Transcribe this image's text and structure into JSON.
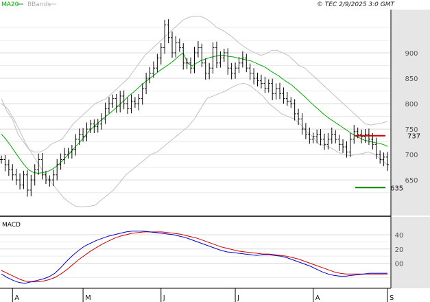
{
  "header": {
    "legend_ma": "MA20",
    "legend_bb": "BBands",
    "copyright": "© TEC 2/9/2025 3:0 GMT"
  },
  "colors": {
    "ma": "#00aa00",
    "bbands": "#c0c0c0",
    "bars": "#000000",
    "resistance": "#cc0000",
    "support": "#008800",
    "macd": "#0000cc",
    "signal": "#cc0000",
    "grid": "#d8d8d8",
    "axis_bg": "#e6e6e6"
  },
  "chart_data": [
    {
      "type": "ohlc",
      "panel": "price",
      "ylim": [
        580,
        985
      ],
      "y_ticks": [
        650,
        700,
        750,
        800,
        850,
        900
      ],
      "y_tick_labels": [
        "650",
        "700",
        "750",
        "800",
        "850",
        "900"
      ],
      "x_labels": [
        "A",
        "M",
        "J",
        "J",
        "A",
        "S"
      ],
      "x_label_index": [
        3,
        22,
        43,
        63,
        84,
        104
      ],
      "n_bars": 105,
      "closes": [
        690,
        680,
        670,
        660,
        650,
        640,
        660,
        630,
        650,
        670,
        690,
        660,
        650,
        650,
        660,
        680,
        690,
        700,
        705,
        710,
        730,
        740,
        735,
        750,
        760,
        755,
        760,
        770,
        790,
        800,
        810,
        795,
        815,
        800,
        790,
        805,
        800,
        810,
        830,
        850,
        860,
        870,
        890,
        910,
        955,
        930,
        900,
        920,
        910,
        880,
        880,
        870,
        900,
        910,
        880,
        860,
        870,
        910,
        880,
        890,
        900,
        870,
        860,
        870,
        880,
        890,
        870,
        860,
        850,
        845,
        840,
        830,
        840,
        820,
        830,
        820,
        810,
        805,
        800,
        780,
        770,
        750,
        740,
        730,
        735,
        740,
        730,
        720,
        730,
        740,
        730,
        720,
        715,
        705,
        730,
        745,
        740,
        735,
        740,
        730,
        720,
        700,
        690,
        695,
        680
      ],
      "ma20": [
        740,
        730,
        718,
        705,
        692,
        680,
        670,
        665,
        663,
        664,
        666,
        670,
        676,
        684,
        693,
        702,
        712,
        722,
        732,
        743,
        752,
        760,
        768,
        775,
        782,
        790,
        798,
        806,
        815,
        822,
        830,
        838,
        845,
        852,
        859,
        866,
        872,
        878,
        885,
        893,
        900,
        880,
        874,
        880,
        885,
        888,
        891,
        893,
        895,
        895,
        893,
        892,
        890,
        888,
        886,
        884,
        880,
        876,
        872,
        866,
        860,
        855,
        848,
        842,
        836,
        828,
        820,
        812,
        803,
        795,
        787,
        779,
        772,
        766,
        760,
        754,
        748,
        742,
        736,
        732,
        728,
        726,
        724,
        722,
        720,
        716
      ],
      "ma20_start": 0,
      "bb_upper": [
        810,
        785,
        770,
        740,
        725,
        710,
        705,
        705,
        710,
        720,
        725,
        730,
        745,
        760,
        770,
        780,
        790,
        800,
        805,
        810,
        820,
        830,
        840,
        850,
        865,
        880,
        895,
        905,
        915,
        925,
        935,
        945,
        955,
        965,
        970,
        972,
        972,
        968,
        960,
        950,
        945,
        938,
        930,
        920,
        912,
        905,
        900,
        895,
        898,
        905,
        905,
        900,
        895,
        885,
        875,
        870,
        860,
        850,
        840,
        830,
        820,
        810,
        800,
        790,
        780,
        770,
        760,
        758,
        760,
        762,
        765
      ],
      "bb_upper_start": 0,
      "bb_lower": [
        800,
        790,
        770,
        745,
        720,
        700,
        680,
        660,
        645,
        630,
        615,
        605,
        598,
        597,
        598,
        600,
        610,
        620,
        630,
        645,
        660,
        670,
        680,
        690,
        700,
        705,
        715,
        725,
        735,
        745,
        755,
        770,
        790,
        810,
        815,
        820,
        825,
        832,
        838,
        840,
        835,
        825,
        815,
        800,
        790,
        780,
        775,
        770,
        760,
        745,
        735,
        720,
        718,
        712,
        705,
        700,
        698,
        700,
        702,
        705,
        700,
        690,
        680
      ],
      "bb_lower_start": 0,
      "resistance": {
        "value": 737,
        "label": "737"
      },
      "support": {
        "value": 635,
        "label": "635"
      }
    },
    {
      "type": "line",
      "panel": "macd",
      "title": "MACD",
      "ylim": [
        -35,
        65
      ],
      "y_ticks": [
        0,
        20,
        40
      ],
      "y_tick_labels": [
        "00",
        "20",
        "40"
      ],
      "series": [
        {
          "values": [
            -15,
            -20,
            -24,
            -27,
            -28,
            -26,
            -24,
            -22,
            -19,
            -14,
            -6,
            3,
            11,
            18,
            24,
            28,
            32,
            35,
            38,
            40,
            42,
            44,
            45,
            45,
            45,
            44,
            43,
            42,
            41,
            40,
            38,
            36,
            33,
            30,
            27,
            24,
            21,
            18,
            16,
            15,
            14,
            13,
            12,
            11,
            12,
            12,
            11,
            10,
            8,
            5,
            2,
            -1,
            -4,
            -8,
            -12,
            -15,
            -17,
            -18,
            -18,
            -17,
            -16,
            -15,
            -14,
            -14,
            -14,
            -14
          ]
        },
        {
          "values": [
            -10,
            -14,
            -18,
            -22,
            -25,
            -26,
            -26,
            -25,
            -23,
            -20,
            -15,
            -9,
            -2,
            5,
            11,
            17,
            22,
            27,
            31,
            35,
            38,
            40,
            42,
            43,
            44,
            44,
            44,
            44,
            43,
            42,
            41,
            39,
            37,
            35,
            32,
            29,
            26,
            23,
            21,
            19,
            17,
            16,
            15,
            14,
            13,
            13,
            12,
            11,
            10,
            8,
            6,
            3,
            0,
            -3,
            -6,
            -9,
            -12,
            -14,
            -15,
            -15,
            -15,
            -15,
            -15,
            -15,
            -15,
            -15
          ]
        }
      ]
    }
  ]
}
